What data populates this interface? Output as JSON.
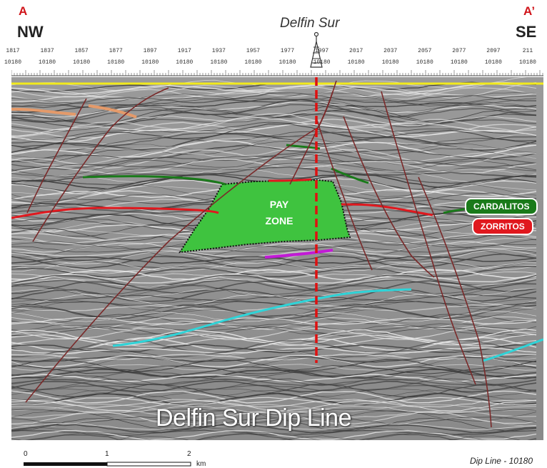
{
  "header": {
    "left_end": "A",
    "right_end": "A’",
    "left_direction": "NW",
    "right_direction": "SE",
    "well_name": "Delfin Sur"
  },
  "traces": [
    "1817",
    "1837",
    "1857",
    "1877",
    "1897",
    "1917",
    "1937",
    "1957",
    "1977",
    "1997",
    "2017",
    "2037",
    "2057",
    "2077",
    "2097",
    "211"
  ],
  "line_no": "10180",
  "labels": {
    "pay_zone_line1": "PAY",
    "pay_zone_line2": "ZONE",
    "cardalitos": "CARDALITOS",
    "zorritos": "ZORRITOS",
    "overlay_title": "Delfin Sur Dip Line"
  },
  "scale": {
    "zero": "0",
    "one": "1",
    "two": "2",
    "unit": "km"
  },
  "footer": {
    "dip_line": "Dip Line - 10180"
  },
  "colors": {
    "pay_zone": "#3fc33f",
    "cardalitos": "#1a7a1a",
    "zorritos": "#e0181e",
    "well_line": "#e01010",
    "cyan_horizon": "#2fd4d8",
    "magenta_horizon": "#c21ad6",
    "fault": "#7a2a2a",
    "top_yellow": "#f2ea1c"
  }
}
